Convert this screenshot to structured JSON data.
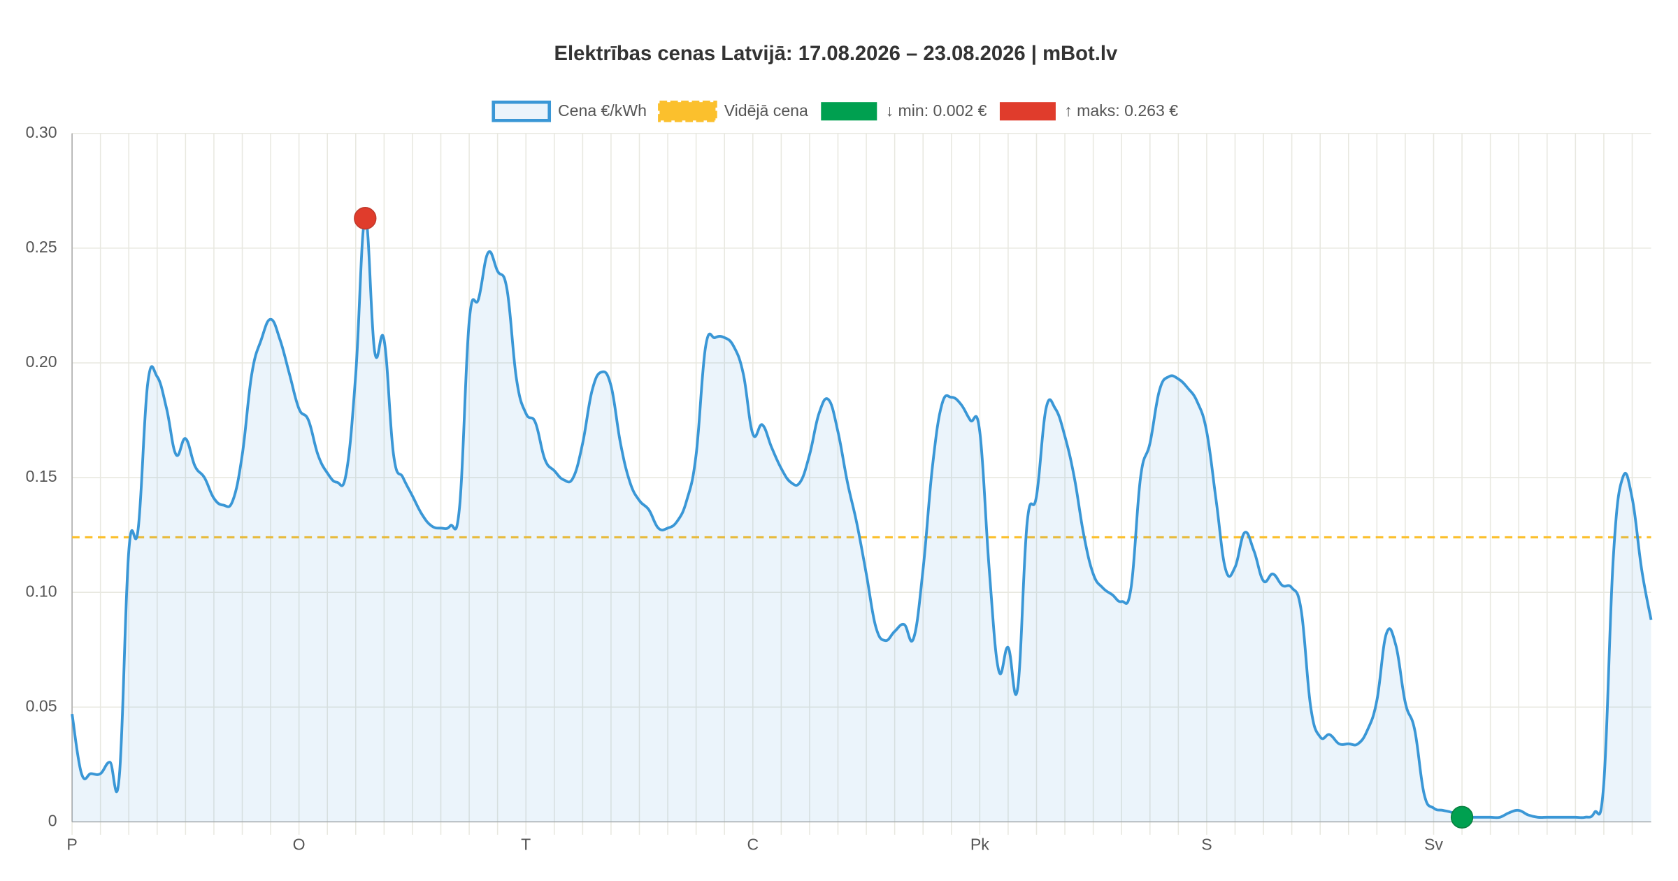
{
  "chart_data": {
    "type": "line",
    "title": "Elektrības cenas Latvijā: 17.08.2026 – 23.08.2026 | mBot.lv",
    "categories": [
      "P",
      null,
      null,
      null,
      null,
      null,
      null,
      null,
      null,
      null,
      null,
      null,
      null,
      null,
      null,
      null,
      null,
      null,
      null,
      null,
      null,
      null,
      null,
      null,
      "O",
      null,
      null,
      null,
      null,
      null,
      null,
      null,
      null,
      null,
      null,
      null,
      null,
      null,
      null,
      null,
      null,
      null,
      null,
      null,
      null,
      null,
      null,
      null,
      "T",
      null,
      null,
      null,
      null,
      null,
      null,
      null,
      null,
      null,
      null,
      null,
      null,
      null,
      null,
      null,
      null,
      null,
      null,
      null,
      null,
      null,
      null,
      null,
      "C",
      null,
      null,
      null,
      null,
      null,
      null,
      null,
      null,
      null,
      null,
      null,
      null,
      null,
      null,
      null,
      null,
      null,
      null,
      null,
      null,
      null,
      null,
      null,
      "Pk",
      null,
      null,
      null,
      null,
      null,
      null,
      null,
      null,
      null,
      null,
      null,
      null,
      null,
      null,
      null,
      null,
      null,
      null,
      null,
      null,
      null,
      null,
      null,
      "S",
      null,
      null,
      null,
      null,
      null,
      null,
      null,
      null,
      null,
      null,
      null,
      null,
      null,
      null,
      null,
      null,
      null,
      null,
      null,
      null,
      null,
      null,
      null,
      "Sv",
      null,
      null,
      null,
      null,
      null,
      null,
      null,
      null,
      null,
      null,
      null,
      null,
      null,
      null,
      null,
      null,
      null,
      null,
      null,
      null,
      null,
      null,
      null
    ],
    "series": [
      {
        "name": "Cena €/kWh",
        "color": "#3a97d6",
        "values": [
          0.047,
          0.021,
          0.021,
          0.021,
          0.026,
          0.02,
          0.118,
          0.128,
          0.191,
          0.194,
          0.18,
          0.16,
          0.167,
          0.155,
          0.15,
          0.141,
          0.138,
          0.14,
          0.16,
          0.195,
          0.21,
          0.219,
          0.21,
          0.195,
          0.18,
          0.175,
          0.16,
          0.152,
          0.148,
          0.152,
          0.195,
          0.263,
          0.205,
          0.21,
          0.16,
          0.15,
          0.142,
          0.134,
          0.129,
          0.128,
          0.129,
          0.138,
          0.218,
          0.228,
          0.248,
          0.24,
          0.232,
          0.193,
          0.178,
          0.174,
          0.158,
          0.153,
          0.149,
          0.15,
          0.165,
          0.188,
          0.196,
          0.19,
          0.165,
          0.148,
          0.14,
          0.136,
          0.128,
          0.128,
          0.131,
          0.14,
          0.16,
          0.207,
          0.211,
          0.211,
          0.207,
          0.195,
          0.169,
          0.173,
          0.163,
          0.154,
          0.148,
          0.148,
          0.16,
          0.178,
          0.184,
          0.17,
          0.148,
          0.13,
          0.108,
          0.085,
          0.079,
          0.083,
          0.086,
          0.08,
          0.11,
          0.155,
          0.182,
          0.185,
          0.182,
          0.175,
          0.17,
          0.11,
          0.066,
          0.076,
          0.058,
          0.13,
          0.142,
          0.18,
          0.18,
          0.168,
          0.15,
          0.125,
          0.108,
          0.102,
          0.099,
          0.096,
          0.102,
          0.15,
          0.165,
          0.188,
          0.194,
          0.193,
          0.189,
          0.183,
          0.17,
          0.14,
          0.11,
          0.111,
          0.126,
          0.118,
          0.105,
          0.108,
          0.103,
          0.102,
          0.092,
          0.05,
          0.037,
          0.038,
          0.034,
          0.034,
          0.034,
          0.04,
          0.053,
          0.082,
          0.077,
          0.052,
          0.04,
          0.012,
          0.006,
          0.005,
          0.004,
          0.002,
          0.002,
          0.002,
          0.002,
          0.002,
          0.004,
          0.005,
          0.003,
          0.002,
          0.002,
          0.002,
          0.002,
          0.002,
          0.002,
          0.004,
          0.017,
          0.115,
          0.15,
          0.141,
          0.11,
          0.088
        ]
      }
    ],
    "average": {
      "name": "Vidējā cena",
      "color": "#fbc02d",
      "value": 0.124
    },
    "min_label": {
      "label": "↓ min: 0.002 €",
      "color": "#00a050"
    },
    "max_label": {
      "label": "↑ maks: 0.263 €",
      "color": "#e03c2c"
    },
    "ylim": [
      0,
      0.3
    ],
    "yticks": [
      0,
      0.05,
      {
        "value": 0.1,
        "label": "0.10"
      },
      0.15,
      {
        "value": 0.2,
        "label": "0.20"
      },
      0.25,
      {
        "value": 0.3,
        "label": "0.30"
      }
    ],
    "grid": true
  }
}
